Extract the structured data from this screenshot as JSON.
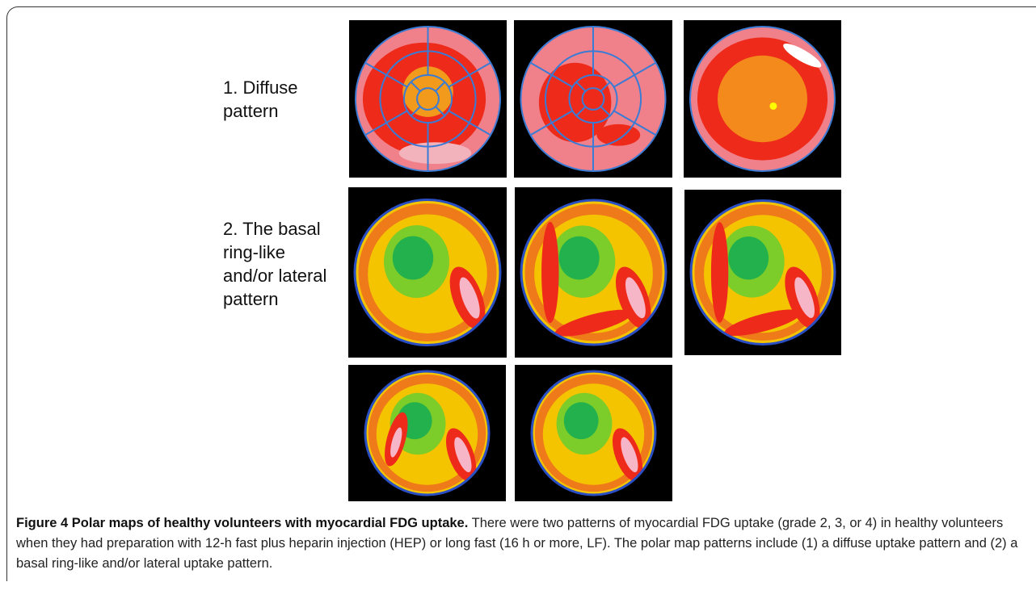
{
  "figure": {
    "labels": [
      {
        "lines": [
          "1. Diffuse",
          "pattern"
        ]
      },
      {
        "lines": [
          "2. The basal",
          "ring-like",
          "and/or lateral",
          "pattern"
        ]
      }
    ],
    "caption": {
      "label": "Figure 4",
      "title": "Polar maps of healthy volunteers with myocardial FDG uptake.",
      "text": "There were two patterns of myocardial FDG uptake (grade 2, 3, or 4) in healthy volunteers when they had preparation with 12-h fast plus heparin injection (HEP) or long fast (16 h or more, LF). The polar map patterns include (1) a diffuse uptake pattern and (2) a basal ring-like and/or lateral uptake pattern."
    }
  }
}
